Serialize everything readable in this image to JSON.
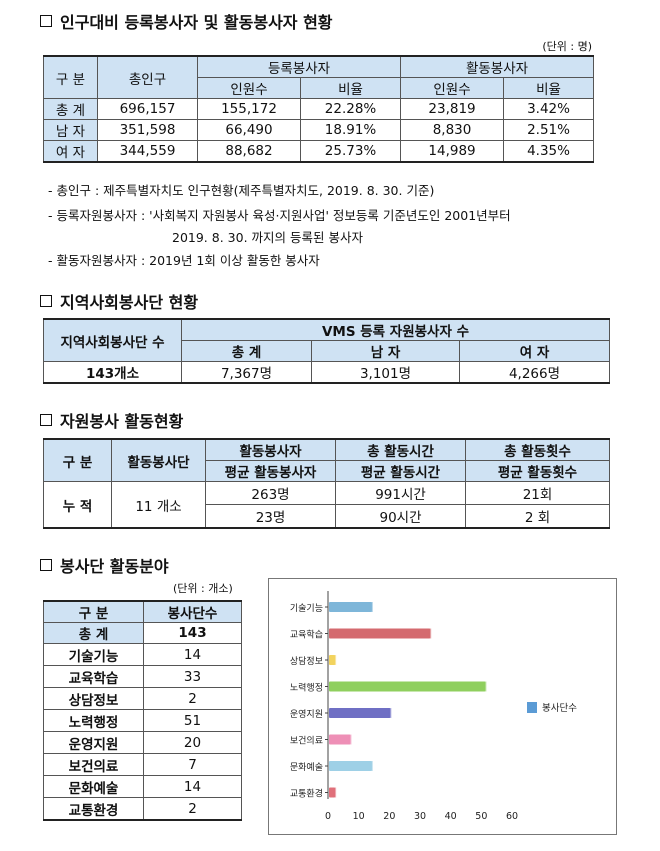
{
  "section1": {
    "title": "인구대비 등록봉사자 및 활동봉사자 현황",
    "unit": "(단위 : 명)",
    "header": {
      "category": "구 분",
      "total_pop": "총인구",
      "registered": "등록봉사자",
      "active": "활동봉사자",
      "count": "인원수",
      "ratio": "비율"
    },
    "rows": [
      {
        "label": "총 계",
        "pop": "696,157",
        "reg_count": "155,172",
        "reg_ratio": "22.28%",
        "act_count": "23,819",
        "act_ratio": "3.42%"
      },
      {
        "label": "남 자",
        "pop": "351,598",
        "reg_count": "66,490",
        "reg_ratio": "18.91%",
        "act_count": "8,830",
        "act_ratio": "2.51%"
      },
      {
        "label": "여 자",
        "pop": "344,559",
        "reg_count": "88,682",
        "reg_ratio": "25.73%",
        "act_count": "14,989",
        "act_ratio": "4.35%"
      }
    ],
    "notes": [
      "- 총인구 : 제주특별자치도 인구현황(제주특별자치도, 2019. 8. 30. 기준)",
      "- 등록자원봉사자 : '사회복지 자원봉사 육성·지원사업' 정보등록 기준년도인 2001년부터",
      "2019. 8. 30. 까지의 등록된 봉사자",
      "- 활동자원봉사자 : 2019년 1회 이상 활동한 봉사자"
    ]
  },
  "section2": {
    "title": "지역사회봉사단 현황",
    "header": {
      "groups": "지역사회봉사단 수",
      "vms": "VMS 등록 자원봉사자 수",
      "total": "총 계",
      "male": "남 자",
      "female": "여 자"
    },
    "row": {
      "groups": "143개소",
      "total": "7,367명",
      "male": "3,101명",
      "female": "4,266명"
    }
  },
  "section3": {
    "title": "자원봉사 활동현황",
    "header": {
      "category": "구 분",
      "groups": "활동봉사단",
      "volunteers": "활동봉사자",
      "avg_volunteers": "평균 활동봉사자",
      "hours": "총 활동시간",
      "avg_hours": "평균 활동시간",
      "count": "총 활동횟수",
      "avg_count": "평균 활동횟수"
    },
    "row": {
      "label": "누 적",
      "groups": "11 개소",
      "volunteers": "263명",
      "avg_volunteers": "23명",
      "hours": "991시간",
      "avg_hours": "90시간",
      "count": "21회",
      "avg_count": "2 회"
    }
  },
  "section4": {
    "title": "봉사단 활동분야",
    "unit": "(단위 : 개소)",
    "header": {
      "category": "구   분",
      "count": "봉사단수"
    },
    "total": {
      "label": "총   계",
      "value": "143"
    },
    "rows": [
      {
        "label": "기술기능",
        "value": "14"
      },
      {
        "label": "교육학습",
        "value": "33"
      },
      {
        "label": "상담정보",
        "value": "2"
      },
      {
        "label": "노력행정",
        "value": "51"
      },
      {
        "label": "운영지원",
        "value": "20"
      },
      {
        "label": "보건의료",
        "value": "7"
      },
      {
        "label": "문화예술",
        "value": "14"
      },
      {
        "label": "교통환경",
        "value": "2"
      }
    ]
  },
  "chart_data": {
    "type": "bar",
    "orientation": "horizontal",
    "categories": [
      "기술기능",
      "교육학습",
      "상담정보",
      "노력행정",
      "운영지원",
      "보건의료",
      "문화예술",
      "교통환경"
    ],
    "series": [
      {
        "name": "봉사단수",
        "values": [
          14,
          33,
          2,
          51,
          20,
          7,
          14,
          2
        ]
      }
    ],
    "bar_colors": [
      "#7eb6d9",
      "#d46a6f",
      "#f2d35e",
      "#8fcf5e",
      "#6f6fc4",
      "#ee8fb6",
      "#9ed0e6",
      "#e0707a"
    ],
    "legend_color": "#5b9bd5",
    "xlim": [
      0,
      60
    ],
    "xticks": [
      "0",
      "10",
      "20",
      "30",
      "40",
      "50",
      "60"
    ],
    "legend_position": "right"
  }
}
